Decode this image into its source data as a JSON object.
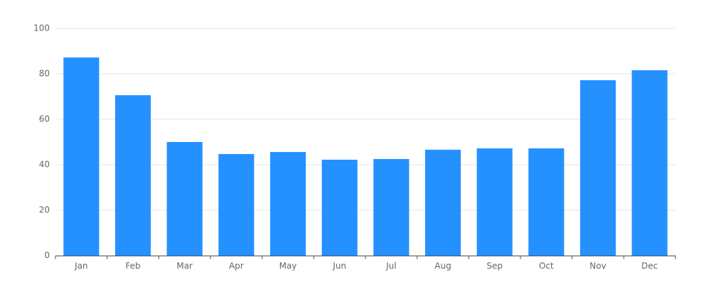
{
  "chart_data": {
    "type": "bar",
    "categories": [
      "Jan",
      "Feb",
      "Mar",
      "Apr",
      "May",
      "Jun",
      "Jul",
      "Aug",
      "Sep",
      "Oct",
      "Nov",
      "Dec"
    ],
    "values": [
      87.2,
      70.6,
      50,
      44.7,
      45.6,
      42.2,
      42.5,
      46.6,
      47.2,
      47.2,
      77.2,
      81.6
    ],
    "color": "#2491ff",
    "ylim": [
      0,
      100
    ],
    "yticks": [
      0,
      20,
      40,
      60,
      80,
      100
    ],
    "grid": true
  }
}
